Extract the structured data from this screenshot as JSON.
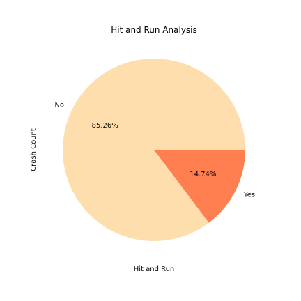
{
  "chart_data": {
    "type": "pie",
    "title": "Hit and Run Analysis",
    "xlabel": "Hit and Run",
    "ylabel": "Crash Count",
    "categories": [
      "No",
      "Yes"
    ],
    "values": [
      85.26,
      14.74
    ],
    "value_labels": [
      "85.26%",
      "14.74%"
    ],
    "colors": [
      "#ffdead",
      "#ff7f50"
    ],
    "start_angle_deg": 0,
    "direction": "counterclockwise"
  }
}
